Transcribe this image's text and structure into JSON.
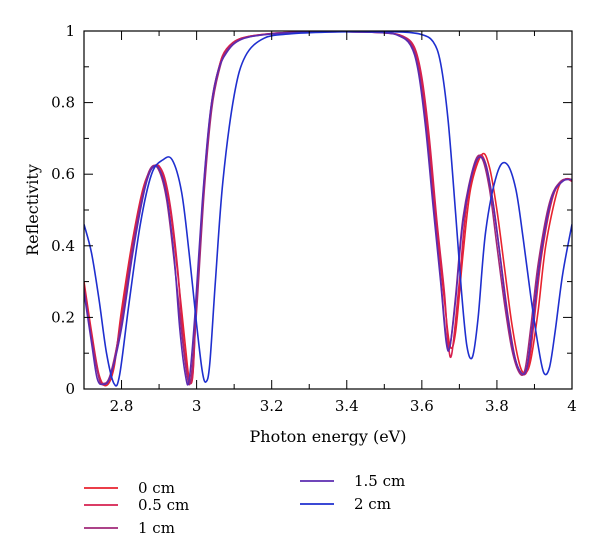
{
  "chart_data": {
    "type": "line",
    "title": "",
    "xlabel": "Photon energy (eV)",
    "ylabel": "Reflectivity",
    "xlim": [
      2.7,
      4.0
    ],
    "ylim": [
      0,
      1
    ],
    "x_ticks": [
      "2.8",
      "3",
      "3.2",
      "3.4",
      "3.6",
      "3.8",
      "4"
    ],
    "y_ticks": [
      "0",
      "0.2",
      "0.4",
      "0.6",
      "0.8",
      "1"
    ],
    "grid": false,
    "legend_position": "bottom",
    "series": [
      {
        "name": "0 cm",
        "color": "#e8232e",
        "points": [
          [
            2.7,
            0.3
          ],
          [
            2.72,
            0.16
          ],
          [
            2.74,
            0.04
          ],
          [
            2.76,
            0.01
          ],
          [
            2.78,
            0.06
          ],
          [
            2.8,
            0.22
          ],
          [
            2.83,
            0.42
          ],
          [
            2.86,
            0.57
          ],
          [
            2.89,
            0.625
          ],
          [
            2.91,
            0.6
          ],
          [
            2.93,
            0.5
          ],
          [
            2.95,
            0.32
          ],
          [
            2.97,
            0.12
          ],
          [
            2.98,
            0.03
          ],
          [
            2.99,
            0.04
          ],
          [
            3.0,
            0.25
          ],
          [
            3.02,
            0.58
          ],
          [
            3.04,
            0.8
          ],
          [
            3.06,
            0.9
          ],
          [
            3.08,
            0.95
          ],
          [
            3.12,
            0.98
          ],
          [
            3.2,
            0.993
          ],
          [
            3.3,
            0.997
          ],
          [
            3.4,
            0.998
          ],
          [
            3.5,
            0.995
          ],
          [
            3.55,
            0.985
          ],
          [
            3.58,
            0.95
          ],
          [
            3.6,
            0.86
          ],
          [
            3.62,
            0.68
          ],
          [
            3.64,
            0.45
          ],
          [
            3.66,
            0.25
          ],
          [
            3.675,
            0.12
          ],
          [
            3.69,
            0.16
          ],
          [
            3.71,
            0.38
          ],
          [
            3.73,
            0.56
          ],
          [
            3.76,
            0.655
          ],
          [
            3.78,
            0.62
          ],
          [
            3.8,
            0.5
          ],
          [
            3.82,
            0.34
          ],
          [
            3.84,
            0.18
          ],
          [
            3.86,
            0.07
          ],
          [
            3.875,
            0.045
          ],
          [
            3.89,
            0.08
          ],
          [
            3.91,
            0.22
          ],
          [
            3.93,
            0.4
          ],
          [
            3.96,
            0.55
          ],
          [
            3.98,
            0.585
          ],
          [
            4.0,
            0.585
          ]
        ]
      },
      {
        "name": "0.5 cm",
        "color": "#d6204f",
        "points": [
          [
            2.7,
            0.29
          ],
          [
            2.72,
            0.15
          ],
          [
            2.74,
            0.035
          ],
          [
            2.755,
            0.012
          ],
          [
            2.775,
            0.05
          ],
          [
            2.8,
            0.2
          ],
          [
            2.83,
            0.41
          ],
          [
            2.86,
            0.565
          ],
          [
            2.885,
            0.622
          ],
          [
            2.91,
            0.605
          ],
          [
            2.93,
            0.51
          ],
          [
            2.95,
            0.33
          ],
          [
            2.965,
            0.13
          ],
          [
            2.98,
            0.025
          ],
          [
            2.99,
            0.045
          ],
          [
            3.0,
            0.25
          ],
          [
            3.02,
            0.57
          ],
          [
            3.04,
            0.79
          ],
          [
            3.06,
            0.9
          ],
          [
            3.08,
            0.95
          ],
          [
            3.12,
            0.98
          ],
          [
            3.2,
            0.993
          ],
          [
            3.3,
            0.997
          ],
          [
            3.4,
            0.998
          ],
          [
            3.5,
            0.995
          ],
          [
            3.55,
            0.985
          ],
          [
            3.58,
            0.955
          ],
          [
            3.6,
            0.87
          ],
          [
            3.62,
            0.7
          ],
          [
            3.64,
            0.47
          ],
          [
            3.66,
            0.27
          ],
          [
            3.67,
            0.13
          ],
          [
            3.68,
            0.1
          ],
          [
            3.7,
            0.3
          ],
          [
            3.72,
            0.52
          ],
          [
            3.75,
            0.645
          ],
          [
            3.77,
            0.63
          ],
          [
            3.79,
            0.52
          ],
          [
            3.81,
            0.36
          ],
          [
            3.83,
            0.2
          ],
          [
            3.85,
            0.08
          ],
          [
            3.87,
            0.04
          ],
          [
            3.885,
            0.07
          ],
          [
            3.9,
            0.2
          ],
          [
            3.92,
            0.38
          ],
          [
            3.95,
            0.54
          ],
          [
            3.98,
            0.585
          ],
          [
            4.0,
            0.58
          ]
        ]
      },
      {
        "name": "1 cm",
        "color": "#a02878",
        "points": [
          [
            2.7,
            0.28
          ],
          [
            2.72,
            0.14
          ],
          [
            2.74,
            0.03
          ],
          [
            2.75,
            0.015
          ],
          [
            2.77,
            0.04
          ],
          [
            2.8,
            0.19
          ],
          [
            2.83,
            0.4
          ],
          [
            2.86,
            0.56
          ],
          [
            2.88,
            0.62
          ],
          [
            2.9,
            0.61
          ],
          [
            2.92,
            0.53
          ],
          [
            2.94,
            0.36
          ],
          [
            2.96,
            0.16
          ],
          [
            2.975,
            0.035
          ],
          [
            2.985,
            0.03
          ],
          [
            3.0,
            0.22
          ],
          [
            3.02,
            0.55
          ],
          [
            3.04,
            0.78
          ],
          [
            3.06,
            0.89
          ],
          [
            3.08,
            0.945
          ],
          [
            3.12,
            0.978
          ],
          [
            3.2,
            0.992
          ],
          [
            3.3,
            0.997
          ],
          [
            3.4,
            0.998
          ],
          [
            3.5,
            0.995
          ],
          [
            3.54,
            0.988
          ],
          [
            3.57,
            0.965
          ],
          [
            3.59,
            0.9
          ],
          [
            3.61,
            0.75
          ],
          [
            3.63,
            0.53
          ],
          [
            3.65,
            0.31
          ],
          [
            3.665,
            0.14
          ],
          [
            3.675,
            0.12
          ],
          [
            3.69,
            0.26
          ],
          [
            3.71,
            0.48
          ],
          [
            3.74,
            0.63
          ],
          [
            3.76,
            0.645
          ],
          [
            3.78,
            0.56
          ],
          [
            3.8,
            0.4
          ],
          [
            3.82,
            0.24
          ],
          [
            3.84,
            0.11
          ],
          [
            3.86,
            0.045
          ],
          [
            3.875,
            0.055
          ],
          [
            3.89,
            0.17
          ],
          [
            3.91,
            0.35
          ],
          [
            3.94,
            0.52
          ],
          [
            3.97,
            0.58
          ],
          [
            4.0,
            0.585
          ]
        ]
      },
      {
        "name": "1.5 cm",
        "color": "#5b2bb0",
        "points": [
          [
            2.7,
            0.27
          ],
          [
            2.72,
            0.13
          ],
          [
            2.735,
            0.03
          ],
          [
            2.75,
            0.013
          ],
          [
            2.77,
            0.035
          ],
          [
            2.8,
            0.17
          ],
          [
            2.83,
            0.38
          ],
          [
            2.86,
            0.55
          ],
          [
            2.88,
            0.615
          ],
          [
            2.9,
            0.615
          ],
          [
            2.92,
            0.54
          ],
          [
            2.94,
            0.37
          ],
          [
            2.955,
            0.17
          ],
          [
            2.97,
            0.04
          ],
          [
            2.98,
            0.025
          ],
          [
            2.995,
            0.2
          ],
          [
            3.015,
            0.52
          ],
          [
            3.035,
            0.76
          ],
          [
            3.055,
            0.88
          ],
          [
            3.08,
            0.94
          ],
          [
            3.12,
            0.977
          ],
          [
            3.2,
            0.992
          ],
          [
            3.3,
            0.997
          ],
          [
            3.4,
            0.998
          ],
          [
            3.5,
            0.995
          ],
          [
            3.54,
            0.986
          ],
          [
            3.57,
            0.96
          ],
          [
            3.59,
            0.89
          ],
          [
            3.61,
            0.73
          ],
          [
            3.63,
            0.51
          ],
          [
            3.65,
            0.3
          ],
          [
            3.665,
            0.13
          ],
          [
            3.675,
            0.12
          ],
          [
            3.69,
            0.25
          ],
          [
            3.71,
            0.47
          ],
          [
            3.74,
            0.625
          ],
          [
            3.765,
            0.64
          ],
          [
            3.785,
            0.55
          ],
          [
            3.805,
            0.4
          ],
          [
            3.825,
            0.23
          ],
          [
            3.845,
            0.1
          ],
          [
            3.865,
            0.045
          ],
          [
            3.88,
            0.06
          ],
          [
            3.895,
            0.18
          ],
          [
            3.915,
            0.36
          ],
          [
            3.945,
            0.53
          ],
          [
            3.975,
            0.58
          ],
          [
            4.0,
            0.585
          ]
        ]
      },
      {
        "name": "2 cm",
        "color": "#1f2fcf",
        "points": [
          [
            2.7,
            0.46
          ],
          [
            2.72,
            0.38
          ],
          [
            2.74,
            0.25
          ],
          [
            2.76,
            0.1
          ],
          [
            2.78,
            0.015
          ],
          [
            2.795,
            0.04
          ],
          [
            2.82,
            0.24
          ],
          [
            2.85,
            0.46
          ],
          [
            2.88,
            0.6
          ],
          [
            2.91,
            0.64
          ],
          [
            2.935,
            0.64
          ],
          [
            2.96,
            0.55
          ],
          [
            2.98,
            0.38
          ],
          [
            3.0,
            0.18
          ],
          [
            3.015,
            0.05
          ],
          [
            3.025,
            0.02
          ],
          [
            3.035,
            0.07
          ],
          [
            3.05,
            0.3
          ],
          [
            3.07,
            0.58
          ],
          [
            3.1,
            0.82
          ],
          [
            3.13,
            0.93
          ],
          [
            3.18,
            0.98
          ],
          [
            3.25,
            0.992
          ],
          [
            3.35,
            0.997
          ],
          [
            3.45,
            0.998
          ],
          [
            3.55,
            0.997
          ],
          [
            3.6,
            0.99
          ],
          [
            3.63,
            0.97
          ],
          [
            3.65,
            0.91
          ],
          [
            3.67,
            0.75
          ],
          [
            3.69,
            0.49
          ],
          [
            3.705,
            0.28
          ],
          [
            3.72,
            0.12
          ],
          [
            3.735,
            0.09
          ],
          [
            3.75,
            0.2
          ],
          [
            3.77,
            0.44
          ],
          [
            3.8,
            0.6
          ],
          [
            3.825,
            0.63
          ],
          [
            3.85,
            0.56
          ],
          [
            3.87,
            0.42
          ],
          [
            3.89,
            0.26
          ],
          [
            3.91,
            0.12
          ],
          [
            3.925,
            0.045
          ],
          [
            3.94,
            0.06
          ],
          [
            3.955,
            0.16
          ],
          [
            3.975,
            0.32
          ],
          [
            4.0,
            0.46
          ]
        ]
      }
    ]
  }
}
